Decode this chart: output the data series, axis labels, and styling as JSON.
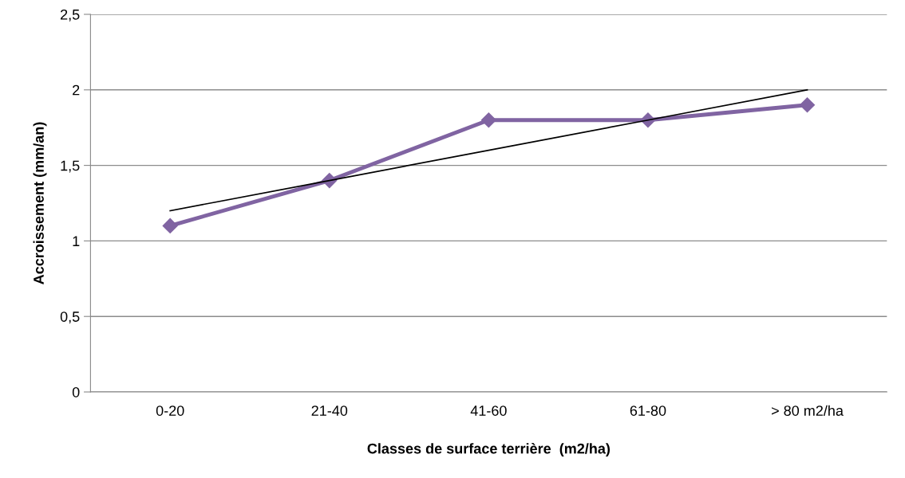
{
  "chart_data": {
    "type": "line",
    "xlabel": "Classes de surface terrière  (m2/ha)",
    "ylabel": "Accroissement (mm/an)",
    "categories": [
      "0-20",
      "21-40",
      "41-60",
      "61-80",
      "> 80 m2/ha"
    ],
    "series": [
      {
        "color": "#8064a2",
        "values": [
          1.1,
          1.4,
          1.8,
          1.8,
          1.9
        ],
        "marker": "diamond"
      },
      {
        "color": "#000000",
        "values": [
          1.2,
          1.4,
          1.6,
          1.8,
          2.0
        ],
        "marker": "none"
      }
    ],
    "ylim": [
      0,
      2.5
    ],
    "yticks": [
      0,
      {
        "value": 0.5,
        "label": "0,5"
      },
      1,
      {
        "value": 1.5,
        "label": "1,5"
      },
      2,
      {
        "value": 2.5,
        "label": "2,5"
      }
    ],
    "grid": "y",
    "legend": false
  }
}
